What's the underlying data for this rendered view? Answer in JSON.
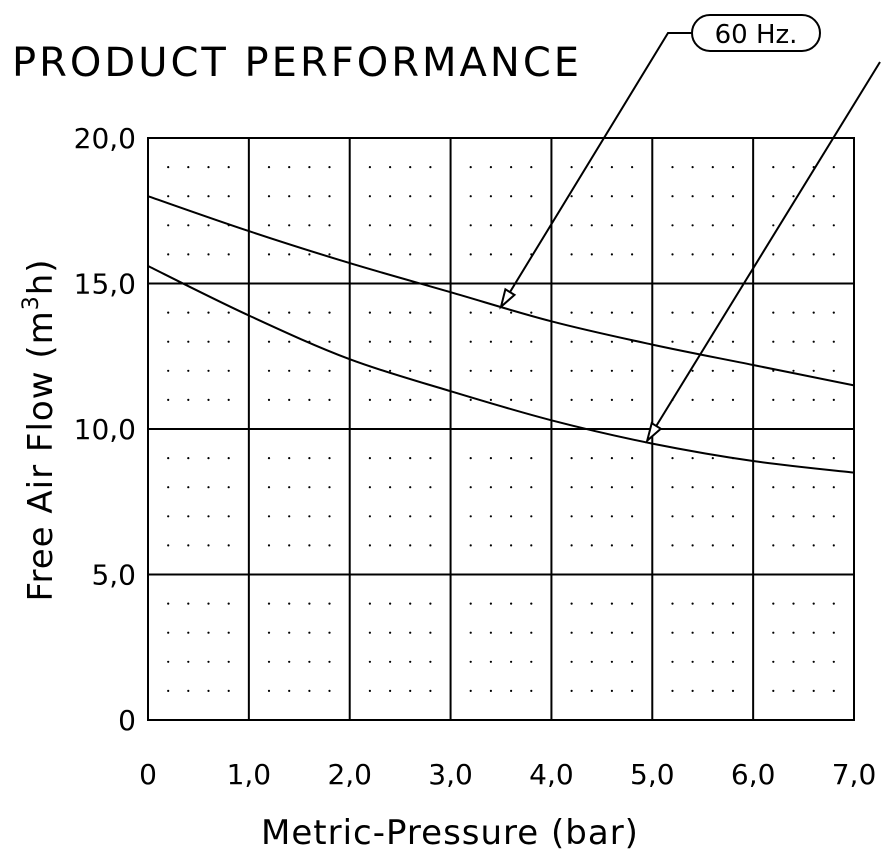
{
  "chart_data": {
    "type": "line",
    "title": "PRODUCT PERFORMANCE",
    "xlabel": "Metric-Pressure (bar)",
    "ylabel_main": "Free Air Flow (m",
    "ylabel_sup": "3",
    "ylabel_end": "h)",
    "xlim": [
      0,
      7
    ],
    "ylim": [
      0,
      20
    ],
    "x_ticks": [
      0,
      1,
      2,
      3,
      4,
      5,
      6,
      7
    ],
    "x_tick_labels": [
      "0",
      "1,0",
      "2,0",
      "3,0",
      "4,0",
      "5,0",
      "6,0",
      "7,0"
    ],
    "y_ticks": [
      0,
      5,
      10,
      15,
      20
    ],
    "y_tick_labels": [
      "0",
      "5,0",
      "10,0",
      "15,0",
      "20,0"
    ],
    "grid": "solid major grid with dotted minor grid",
    "series": [
      {
        "x": [
          0,
          1,
          2,
          3,
          4,
          5,
          6,
          7
        ],
        "y": [
          18.0,
          16.8,
          15.7,
          14.7,
          13.7,
          12.9,
          12.2,
          11.5
        ]
      },
      {
        "x": [
          0,
          1,
          2,
          3,
          4,
          5,
          6,
          7
        ],
        "y": [
          15.6,
          13.9,
          12.4,
          11.3,
          10.3,
          9.5,
          8.9,
          8.5
        ]
      }
    ],
    "annotations": [
      {
        "label": "60 Hz.",
        "target_x": 3.5,
        "target_y": 14.2
      }
    ]
  }
}
